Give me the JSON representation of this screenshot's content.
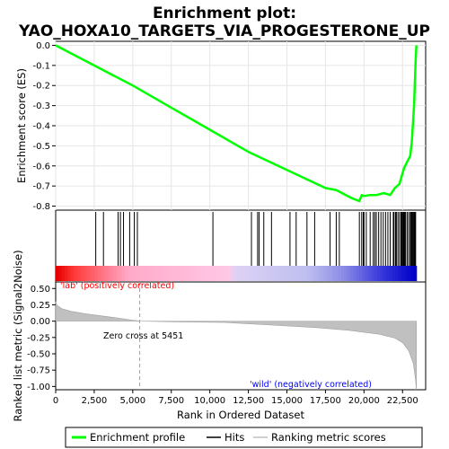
{
  "chart_data": {
    "type": "line",
    "title_line1": "Enrichment plot:",
    "title_line2": "YAO_HOXA10_TARGETS_VIA_PROGESTERONE_UP",
    "es_panel": {
      "ylabel": "Enrichment score (ES)",
      "ylim": [
        -0.82,
        0.02
      ],
      "yticks": [
        "0.0",
        "-0.1",
        "-0.2",
        "-0.3",
        "-0.4",
        "-0.5",
        "-0.6",
        "-0.7",
        "-0.8"
      ],
      "ytick_values": [
        0.0,
        -0.1,
        -0.2,
        -0.3,
        -0.4,
        -0.5,
        -0.6,
        -0.7,
        -0.8
      ],
      "line_color": "#00ff00",
      "profile": [
        [
          0,
          0.0
        ],
        [
          2500,
          -0.1
        ],
        [
          5000,
          -0.2
        ],
        [
          7500,
          -0.31
        ],
        [
          10000,
          -0.42
        ],
        [
          12500,
          -0.53
        ],
        [
          15000,
          -0.62
        ],
        [
          17500,
          -0.71
        ],
        [
          18200,
          -0.72
        ],
        [
          19200,
          -0.76
        ],
        [
          19700,
          -0.775
        ],
        [
          19850,
          -0.745
        ],
        [
          20000,
          -0.75
        ],
        [
          20400,
          -0.745
        ],
        [
          20800,
          -0.745
        ],
        [
          21300,
          -0.735
        ],
        [
          21700,
          -0.745
        ],
        [
          22000,
          -0.71
        ],
        [
          22300,
          -0.69
        ],
        [
          22600,
          -0.61
        ],
        [
          22800,
          -0.58
        ],
        [
          23000,
          -0.55
        ],
        [
          23100,
          -0.48
        ],
        [
          23250,
          -0.3
        ],
        [
          23350,
          -0.08
        ],
        [
          23400,
          0.0
        ]
      ]
    },
    "hits": [
      2600,
      3100,
      4050,
      4200,
      4400,
      4800,
      5100,
      5300,
      10200,
      12700,
      13100,
      13200,
      13500,
      14000,
      15200,
      15600,
      16300,
      16800,
      17800,
      18200,
      18400,
      19700,
      19850,
      19950,
      20000,
      20150,
      20400,
      20600,
      20700,
      20800,
      20950,
      21100,
      21250,
      21400,
      21550,
      21700,
      21900,
      21950,
      22050,
      22100,
      22200,
      22300,
      22400,
      22450,
      22500,
      22550,
      22600,
      22650,
      22700,
      22800,
      22900,
      23000,
      23050,
      23100,
      23150,
      23200,
      23250,
      23300,
      23350
    ],
    "metric_panel": {
      "ylabel": "Ranked list metric (Signal2Noise)",
      "ylim": [
        -1.05,
        0.6
      ],
      "yticks": [
        "0.50",
        "0.25",
        "0.00",
        "-0.25",
        "-0.50",
        "-0.75",
        "-1.00"
      ],
      "ytick_values": [
        0.5,
        0.25,
        0.0,
        -0.25,
        -0.5,
        -0.75,
        -1.0
      ],
      "profile": [
        [
          0,
          0.3
        ],
        [
          100,
          0.24
        ],
        [
          400,
          0.19
        ],
        [
          1000,
          0.15
        ],
        [
          2000,
          0.11
        ],
        [
          3000,
          0.08
        ],
        [
          4000,
          0.05
        ],
        [
          5000,
          0.015
        ],
        [
          5451,
          0.0
        ],
        [
          8000,
          -0.01
        ],
        [
          11000,
          -0.02
        ],
        [
          14000,
          -0.06
        ],
        [
          17000,
          -0.1
        ],
        [
          19000,
          -0.14
        ],
        [
          21000,
          -0.2
        ],
        [
          22000,
          -0.26
        ],
        [
          22500,
          -0.33
        ],
        [
          22900,
          -0.45
        ],
        [
          23200,
          -0.65
        ],
        [
          23350,
          -0.9
        ],
        [
          23400,
          -1.05
        ]
      ],
      "zero_cross_label": "Zero cross at 5451",
      "zero_cross_rank": 5451,
      "pos_label": "'lab' (positively correlated)",
      "neg_label": "'wild' (negatively correlated)"
    },
    "x_axis": {
      "xlabel": "Rank in Ordered Dataset",
      "xlim": [
        0,
        24000
      ],
      "xticks": [
        "0",
        "2,500",
        "5,000",
        "7,500",
        "10,000",
        "12,500",
        "15,000",
        "17,500",
        "20,000",
        "22,500"
      ],
      "xtick_values": [
        0,
        2500,
        5000,
        7500,
        10000,
        12500,
        15000,
        17500,
        20000,
        22500
      ],
      "n_genes": 23400
    },
    "legend": {
      "placement": "bottom",
      "items": [
        {
          "label": "Enrichment profile",
          "color": "#00ff00"
        },
        {
          "label": "Hits",
          "color": "#000000"
        },
        {
          "label": "Ranking metric scores",
          "color": "#c0c0c0"
        }
      ]
    },
    "colors": {
      "pos_text": "#ff0000",
      "neg_text": "#0000ff",
      "metric_fill": "#c0c0c0"
    }
  }
}
